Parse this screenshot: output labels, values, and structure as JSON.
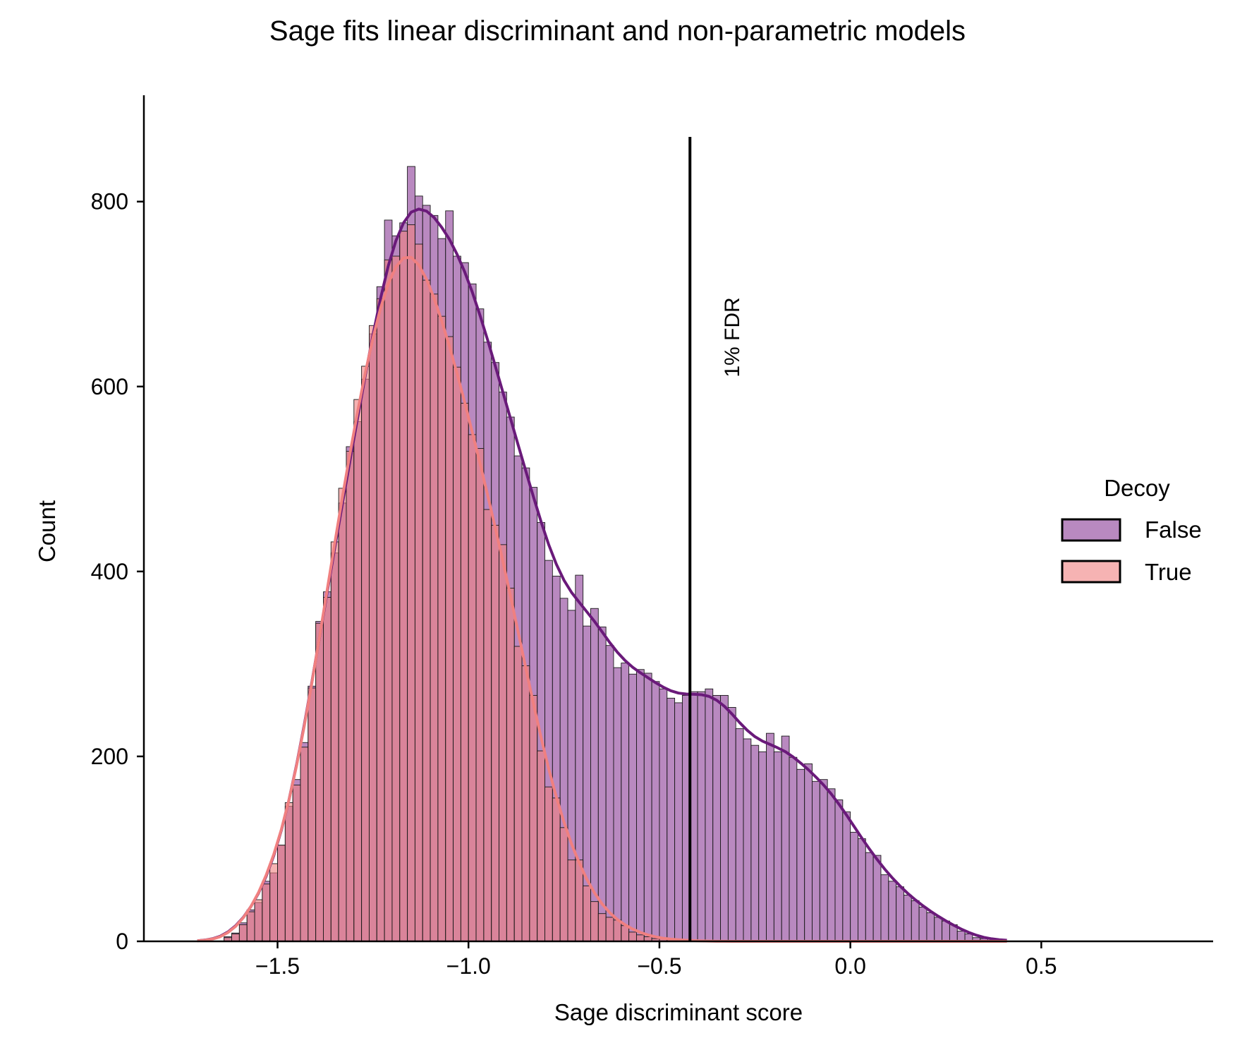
{
  "chart_data": {
    "type": "bar",
    "title": "Sage fits linear discriminant and non-parametric models",
    "xlabel": "Sage discriminant score",
    "ylabel": "Count",
    "xlim": [
      -1.85,
      0.95
    ],
    "ylim": [
      0,
      915
    ],
    "xticks": [
      -1.5,
      -1.0,
      -0.5,
      0.0,
      0.5
    ],
    "xtick_labels": [
      "−1.5",
      "−1.0",
      "−0.5",
      "0.0",
      "0.5"
    ],
    "yticks": [
      0,
      200,
      400,
      600,
      800
    ],
    "ytick_labels": [
      "0",
      "200",
      "400",
      "600",
      "800"
    ],
    "bin_start": -1.72,
    "bin_width": 0.02,
    "legend": {
      "title": "Decoy",
      "placement": "center-right",
      "entries": [
        {
          "label": "False",
          "color": "#9e5ca8"
        },
        {
          "label": "True",
          "color": "#f08080"
        }
      ]
    },
    "annotation": {
      "text": "1% FDR",
      "x": -0.42
    },
    "grid": false,
    "series": [
      {
        "name": "False",
        "color": "#9e5ca8",
        "kde_color": "#6a1a7a",
        "values": [
          0,
          0,
          0,
          0,
          5,
          9,
          20,
          34,
          42,
          65,
          74,
          104,
          146,
          175,
          215,
          276,
          346,
          378,
          420,
          474,
          535,
          562,
          608,
          657,
          708,
          780,
          763,
          777,
          838,
          806,
          796,
          785,
          760,
          790,
          741,
          734,
          711,
          684,
          648,
          626,
          594,
          567,
          525,
          512,
          491,
          453,
          412,
          395,
          371,
          358,
          396,
          341,
          360,
          340,
          320,
          296,
          301,
          289,
          294,
          290,
          281,
          273,
          263,
          258,
          266,
          270,
          270,
          273,
          266,
          266,
          253,
          230,
          219,
          212,
          205,
          225,
          205,
          222,
          199,
          186,
          192,
          173,
          175,
          165,
          153,
          140,
          118,
          111,
          96,
          93,
          72,
          65,
          59,
          50,
          44,
          37,
          31,
          26,
          22,
          18,
          11,
          8,
          4,
          3,
          1,
          0,
          0
        ]
      },
      {
        "name": "True",
        "color": "#f08080",
        "values": [
          0,
          0,
          0,
          0,
          4,
          8,
          18,
          32,
          45,
          62,
          84,
          104,
          150,
          169,
          210,
          274,
          344,
          372,
          432,
          490,
          530,
          586,
          622,
          666,
          695,
          737,
          741,
          768,
          775,
          754,
          715,
          700,
          676,
          654,
          621,
          582,
          548,
          533,
          467,
          450,
          429,
          382,
          319,
          298,
          266,
          206,
          167,
          155,
          123,
          88,
          88,
          60,
          43,
          30,
          26,
          23,
          17,
          10,
          7,
          5,
          3,
          3,
          2,
          1,
          1,
          1,
          0,
          0,
          0,
          0,
          0,
          0,
          0,
          0,
          0,
          0,
          0,
          0,
          0,
          0,
          0,
          0,
          0,
          0,
          0,
          0,
          0,
          0,
          0,
          0,
          0,
          0,
          0,
          0,
          0,
          0,
          0,
          0,
          0,
          0,
          0,
          0,
          0,
          0,
          0,
          0,
          0
        ]
      }
    ]
  }
}
